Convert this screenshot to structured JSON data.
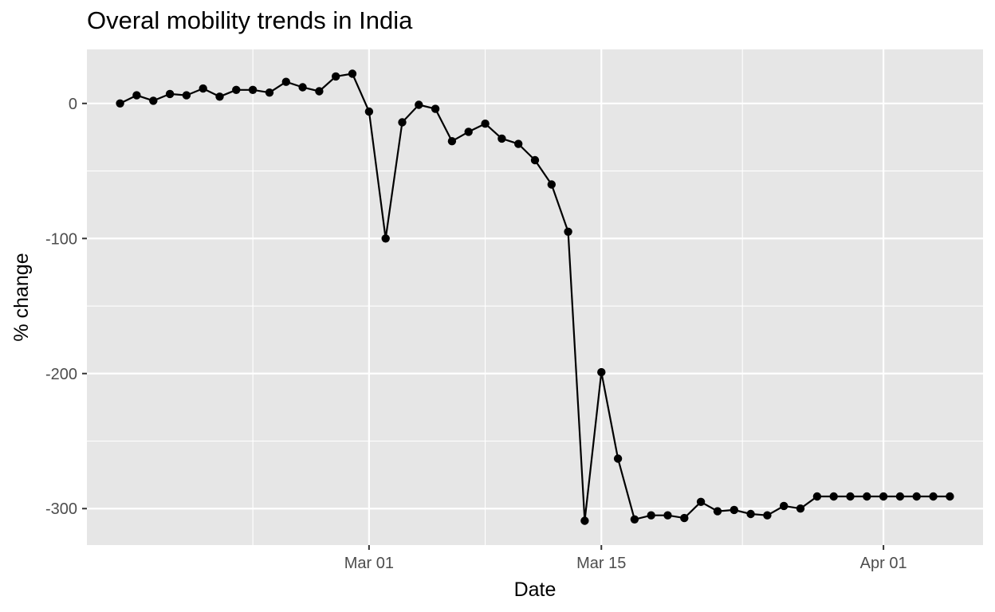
{
  "chart_data": {
    "type": "line",
    "title": "Overal mobility trends in India",
    "xlabel": "Date",
    "ylabel": "% change",
    "x_start": "2020-02-15",
    "xlim": [
      "2020-02-13",
      "2020-04-07"
    ],
    "ylim": [
      -327,
      40
    ],
    "x_ticks": [
      {
        "date": "2020-03-01",
        "label": "Mar 01"
      },
      {
        "date": "2020-03-15",
        "label": "Mar 15"
      },
      {
        "date": "2020-04-01",
        "label": "Apr 01"
      }
    ],
    "y_ticks": [
      {
        "value": 0,
        "label": "0"
      },
      {
        "value": -100,
        "label": "-100"
      },
      {
        "value": -200,
        "label": "-200"
      },
      {
        "value": -300,
        "label": "-300"
      }
    ],
    "y_minor_ticks": [
      -50,
      -150,
      -250
    ],
    "grid": true,
    "colors": {
      "panel": "#e6e6e6",
      "grid": "#ffffff",
      "line": "#000000",
      "point": "#000000"
    },
    "series": [
      {
        "x": [
          "2020-02-15",
          "2020-02-16",
          "2020-02-17",
          "2020-02-18",
          "2020-02-19",
          "2020-02-20",
          "2020-02-21",
          "2020-02-22",
          "2020-02-23",
          "2020-02-24",
          "2020-02-25",
          "2020-02-26",
          "2020-02-27",
          "2020-02-28",
          "2020-02-29",
          "2020-03-01",
          "2020-03-02",
          "2020-03-03",
          "2020-03-04",
          "2020-03-05",
          "2020-03-06",
          "2020-03-07",
          "2020-03-08",
          "2020-03-09",
          "2020-03-10",
          "2020-03-11",
          "2020-03-12",
          "2020-03-13",
          "2020-03-14",
          "2020-03-15",
          "2020-03-16",
          "2020-03-17",
          "2020-03-18",
          "2020-03-19",
          "2020-03-20",
          "2020-03-21",
          "2020-03-22",
          "2020-03-23",
          "2020-03-24",
          "2020-03-25",
          "2020-03-26",
          "2020-03-27",
          "2020-03-28",
          "2020-03-29",
          "2020-03-30",
          "2020-03-31",
          "2020-04-01",
          "2020-04-02",
          "2020-04-03",
          "2020-04-04",
          "2020-04-05"
        ],
        "values": [
          0,
          6,
          2,
          7,
          6,
          11,
          5,
          10,
          10,
          8,
          16,
          12,
          9,
          20,
          22,
          -6,
          -100,
          -14,
          -1,
          -4,
          -28,
          -21,
          -15,
          -26,
          -30,
          -42,
          -60,
          -95,
          -309,
          -199,
          -263,
          -308,
          -305,
          -305,
          -307,
          -295,
          -302,
          -301,
          -304,
          -305,
          -298,
          -300,
          -291,
          -291,
          -291,
          -291,
          -291,
          -291,
          -291,
          -291,
          -291
        ]
      }
    ]
  }
}
